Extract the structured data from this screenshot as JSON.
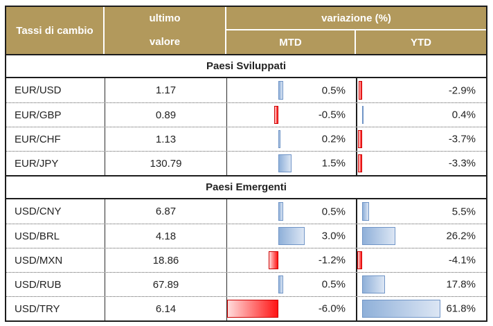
{
  "title": "Tassi di cambio",
  "header": {
    "exchange": "Tassi di cambio",
    "last_value_line1": "ultimo",
    "last_value_line2": "valore",
    "variation": "variazione (%)",
    "mtd": "MTD",
    "ytd": "YTD"
  },
  "sections": [
    {
      "label": "Paesi Sviluppati",
      "rows": [
        {
          "pair": "EUR/USD",
          "last": "1.17",
          "mtd": 0.5,
          "mtd_label": "0.5%",
          "ytd": -2.9,
          "ytd_label": "-2.9%"
        },
        {
          "pair": "EUR/GBP",
          "last": "0.89",
          "mtd": -0.5,
          "mtd_label": "-0.5%",
          "ytd": 0.4,
          "ytd_label": "0.4%"
        },
        {
          "pair": "EUR/CHF",
          "last": "1.13",
          "mtd": 0.2,
          "mtd_label": "0.2%",
          "ytd": -3.7,
          "ytd_label": "-3.7%"
        },
        {
          "pair": "EUR/JPY",
          "last": "130.79",
          "mtd": 1.5,
          "mtd_label": "1.5%",
          "ytd": -3.3,
          "ytd_label": "-3.3%"
        }
      ]
    },
    {
      "label": "Paesi Emergenti",
      "rows": [
        {
          "pair": "USD/CNY",
          "last": "6.87",
          "mtd": 0.5,
          "mtd_label": "0.5%",
          "ytd": 5.5,
          "ytd_label": "5.5%"
        },
        {
          "pair": "USD/BRL",
          "last": "4.18",
          "mtd": 3.0,
          "mtd_label": "3.0%",
          "ytd": 26.2,
          "ytd_label": "26.2%"
        },
        {
          "pair": "USD/MXN",
          "last": "18.86",
          "mtd": -1.2,
          "mtd_label": "-1.2%",
          "ytd": -4.1,
          "ytd_label": "-4.1%"
        },
        {
          "pair": "USD/RUB",
          "last": "67.89",
          "mtd": 0.5,
          "mtd_label": "0.5%",
          "ytd": 17.8,
          "ytd_label": "17.8%"
        },
        {
          "pair": "USD/TRY",
          "last": "6.14",
          "mtd": -6.0,
          "mtd_label": "-6.0%",
          "ytd": 61.8,
          "ytd_label": "61.8%"
        }
      ]
    }
  ],
  "bars": {
    "mtd": {
      "axis_frac": 0.4,
      "neg_full_pct": 6.0
    },
    "ytd": {
      "axis_frac": 0.04,
      "neg_full_pct": 4.1
    }
  },
  "colors": {
    "header_bg": "#b2995c",
    "header_text": "#ffffff",
    "body_text": "#222222",
    "border_dark": "#1c1c1c",
    "blue_border": "#6f94c6",
    "blue_start": "#8fb0d9",
    "blue_end": "#dce6f4",
    "red_border": "#cc0000",
    "red_start": "#ffdbdb",
    "red_end": "#ff1414"
  },
  "chart_data": {
    "type": "table",
    "title": "Tassi di cambio",
    "columns": [
      "Tassi di cambio",
      "ultimo valore",
      "variazione (%) MTD",
      "variazione (%) YTD"
    ],
    "groups": [
      {
        "label": "Paesi Sviluppati",
        "rows": [
          [
            "EUR/USD",
            1.17,
            0.5,
            -2.9
          ],
          [
            "EUR/GBP",
            0.89,
            -0.5,
            0.4
          ],
          [
            "EUR/CHF",
            1.13,
            0.2,
            -3.7
          ],
          [
            "EUR/JPY",
            130.79,
            1.5,
            -3.3
          ]
        ]
      },
      {
        "label": "Paesi Emergenti",
        "rows": [
          [
            "USD/CNY",
            6.87,
            0.5,
            5.5
          ],
          [
            "USD/BRL",
            4.18,
            3.0,
            26.2
          ],
          [
            "USD/MXN",
            18.86,
            -1.2,
            -4.1
          ],
          [
            "USD/RUB",
            67.89,
            0.5,
            17.8
          ],
          [
            "USD/TRY",
            6.14,
            -6.0,
            61.8
          ]
        ]
      }
    ],
    "bar_encoding": "MTD and YTD cells contain Excel-style gradient data bars: blue for positive values, red for negative values, per-column linear scale with negative axis",
    "legend_position": "none",
    "grid": "dotted row separators, solid section separators"
  }
}
